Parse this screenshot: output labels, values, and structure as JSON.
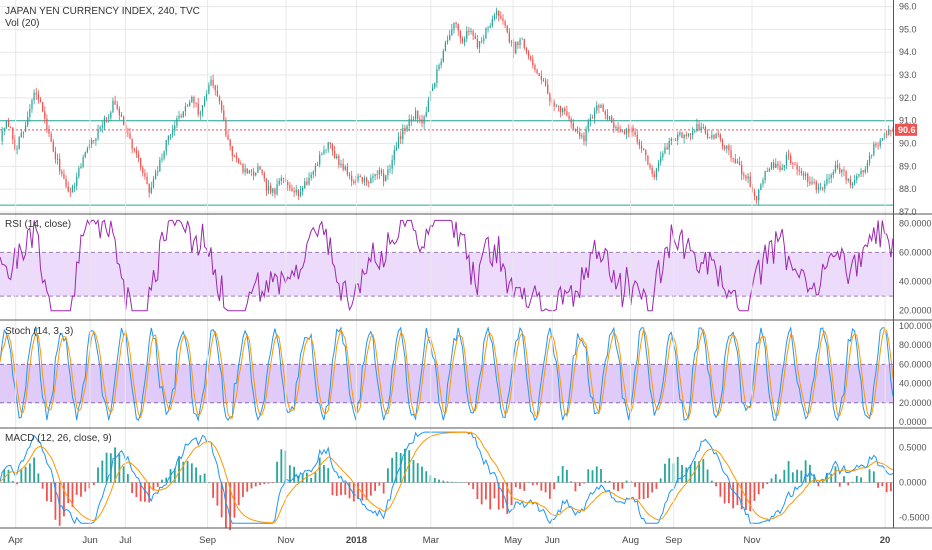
{
  "chart_data": [
    {
      "type": "candlestick",
      "panel": "price",
      "title": "JAPAN YEN CURRENCY INDEX, 240, TVC",
      "subtitle": "Vol (20)",
      "y_ticks": [
        "96.0",
        "95.0",
        "94.0",
        "93.0",
        "92.0",
        "91.0",
        "90.0",
        "89.0",
        "88.0",
        "87.0"
      ],
      "ylim": [
        87.0,
        96.2
      ],
      "last_price_label": "90.6",
      "last_price": 90.6,
      "horizontal_lines": [
        {
          "value": 91.0,
          "color": "#26a69a"
        },
        {
          "value": 90.6,
          "color": "#ef5350",
          "style": "dotted"
        },
        {
          "value": 87.3,
          "color": "#26a69a"
        }
      ],
      "close_path": [
        [
          0,
          90.2
        ],
        [
          2,
          91.0
        ],
        [
          4,
          89.8
        ],
        [
          6,
          90.5
        ],
        [
          8,
          91.7
        ],
        [
          9,
          92.3
        ],
        [
          11,
          91.4
        ],
        [
          13,
          90.0
        ],
        [
          15,
          89.0
        ],
        [
          17,
          88.2
        ],
        [
          18,
          87.8
        ],
        [
          20,
          88.7
        ],
        [
          22,
          89.8
        ],
        [
          24,
          90.2
        ],
        [
          26,
          90.8
        ],
        [
          28,
          91.3
        ],
        [
          29,
          91.8
        ],
        [
          31,
          91.2
        ],
        [
          33,
          90.2
        ],
        [
          35,
          89.4
        ],
        [
          37,
          88.5
        ],
        [
          38,
          87.8
        ],
        [
          40,
          88.7
        ],
        [
          42,
          89.8
        ],
        [
          44,
          90.7
        ],
        [
          46,
          91.2
        ],
        [
          48,
          91.7
        ],
        [
          49,
          92.1
        ],
        [
          51,
          91.2
        ],
        [
          53,
          92.4
        ],
        [
          54,
          92.9
        ],
        [
          56,
          91.8
        ],
        [
          58,
          90.2
        ],
        [
          60,
          89.3
        ],
        [
          62,
          88.9
        ],
        [
          64,
          88.6
        ],
        [
          66,
          88.9
        ],
        [
          68,
          88.1
        ],
        [
          70,
          87.8
        ],
        [
          72,
          88.5
        ],
        [
          74,
          88.2
        ],
        [
          76,
          87.8
        ],
        [
          78,
          88.2
        ],
        [
          80,
          88.8
        ],
        [
          82,
          89.6
        ],
        [
          84,
          90.0
        ],
        [
          86,
          89.3
        ],
        [
          88,
          88.9
        ],
        [
          90,
          88.3
        ],
        [
          92,
          88.6
        ],
        [
          94,
          88.2
        ],
        [
          96,
          88.8
        ],
        [
          98,
          88.5
        ],
        [
          100,
          89.2
        ],
        [
          102,
          90.3
        ],
        [
          104,
          90.8
        ],
        [
          106,
          91.3
        ],
        [
          108,
          91.0
        ],
        [
          110,
          92.2
        ],
        [
          112,
          93.4
        ],
        [
          114,
          94.5
        ],
        [
          116,
          95.2
        ],
        [
          118,
          94.6
        ],
        [
          120,
          94.9
        ],
        [
          122,
          94.3
        ],
        [
          124,
          94.9
        ],
        [
          126,
          95.4
        ],
        [
          127,
          95.9
        ],
        [
          129,
          95.0
        ],
        [
          131,
          94.1
        ],
        [
          133,
          94.6
        ],
        [
          135,
          93.7
        ],
        [
          137,
          93.2
        ],
        [
          139,
          92.6
        ],
        [
          141,
          91.7
        ],
        [
          143,
          91.5
        ],
        [
          145,
          91.2
        ],
        [
          147,
          90.6
        ],
        [
          149,
          90.2
        ],
        [
          151,
          91.2
        ],
        [
          153,
          91.7
        ],
        [
          155,
          91.2
        ],
        [
          157,
          90.8
        ],
        [
          159,
          90.4
        ],
        [
          161,
          90.7
        ],
        [
          163,
          90.1
        ],
        [
          165,
          89.3
        ],
        [
          167,
          88.6
        ],
        [
          169,
          89.4
        ],
        [
          171,
          90.1
        ],
        [
          173,
          90.3
        ],
        [
          175,
          90.4
        ],
        [
          177,
          90.6
        ],
        [
          179,
          90.8
        ],
        [
          181,
          90.2
        ],
        [
          183,
          90.4
        ],
        [
          185,
          89.9
        ],
        [
          187,
          89.4
        ],
        [
          189,
          88.9
        ],
        [
          191,
          88.4
        ],
        [
          193,
          87.6
        ],
        [
          195,
          88.5
        ],
        [
          197,
          89.2
        ],
        [
          199,
          88.8
        ],
        [
          201,
          89.4
        ],
        [
          203,
          89.0
        ],
        [
          205,
          88.6
        ],
        [
          207,
          88.3
        ],
        [
          209,
          88.0
        ],
        [
          211,
          88.3
        ],
        [
          213,
          89.0
        ],
        [
          215,
          88.8
        ],
        [
          217,
          88.2
        ],
        [
          219,
          88.6
        ],
        [
          221,
          89.0
        ],
        [
          223,
          89.8
        ],
        [
          225,
          90.2
        ],
        [
          227,
          90.6
        ],
        [
          228,
          90.6
        ]
      ],
      "x_domain": [
        0,
        228
      ]
    },
    {
      "type": "line",
      "panel": "rsi",
      "title": "RSI (14, close)",
      "y_ticks": [
        "80.0000",
        "60.0000",
        "40.0000",
        "20.0000"
      ],
      "ylim": [
        15,
        85
      ],
      "band": [
        30,
        60
      ],
      "band_color": "#e6ccfa",
      "line_color": "#9c27b0"
    },
    {
      "type": "line",
      "panel": "stoch",
      "title": "Stoch (14, 3, 3)",
      "y_ticks": [
        "100.0000",
        "80.0000",
        "60.0000",
        "40.0000",
        "20.0000",
        "0.0000"
      ],
      "ylim": [
        0,
        100
      ],
      "band": [
        20,
        60
      ],
      "band_color": "#d6b8f5",
      "series": [
        {
          "color": "#2196f3"
        },
        {
          "color": "#ff9800"
        }
      ]
    },
    {
      "type": "line+histogram",
      "panel": "macd",
      "title": "MACD (12, 26, close, 9)",
      "y_ticks": [
        "0.5000",
        "0.0000",
        "-0.5000"
      ],
      "ylim": [
        -0.62,
        0.75
      ],
      "series": [
        {
          "color": "#2196f3"
        },
        {
          "color": "#ff9800"
        }
      ],
      "histogram_colors": {
        "positive": "#26a69a",
        "negative": "#ef5350"
      }
    }
  ],
  "x_axis": {
    "labels": [
      "Apr",
      "Jun",
      "Jul",
      "Sep",
      "Nov",
      "2018",
      "Mar",
      "May",
      "Jun",
      "Aug",
      "Sep",
      "Nov",
      "20"
    ],
    "label_positions": [
      4,
      23,
      32,
      53,
      73,
      91,
      110,
      131,
      141,
      161,
      172,
      192,
      226
    ],
    "bold_labels": [
      "2018",
      "20"
    ]
  },
  "colors": {
    "up": "#26a69a",
    "down": "#ef5350",
    "grid": "#e8e8e8",
    "separator": "#555555"
  }
}
